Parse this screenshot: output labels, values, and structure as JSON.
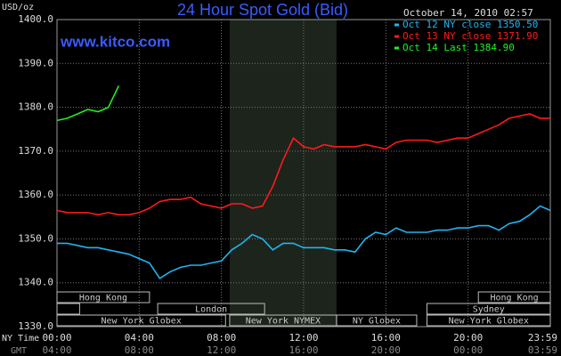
{
  "chart_data": {
    "type": "line",
    "title": "24 Hour Spot Gold (Bid)",
    "watermark": "www.kitco.com",
    "timestamp": "October 14, 2010 02:57",
    "y_unit": "USD/oz",
    "x_axis_labels": [
      "NY Time",
      "GMT"
    ],
    "xlim": [
      0,
      24
    ],
    "xticks": [
      {
        "value": 0,
        "label": "00:00"
      },
      {
        "value": 4,
        "label": "04:00"
      },
      {
        "value": 8,
        "label": "08:00"
      },
      {
        "value": 12,
        "label": "12:00"
      },
      {
        "value": 16,
        "label": "16:00"
      },
      {
        "value": 20,
        "label": "20:00"
      },
      {
        "value": 24,
        "label": "23:59"
      }
    ],
    "gmt_tick_labels": [
      "04:00",
      "08:00",
      "12:00",
      "16:00",
      "20:00",
      "00:00",
      "03:59"
    ],
    "ylim": [
      1330,
      1400
    ],
    "yticks": [
      {
        "value": 1330,
        "label": "1330.0"
      },
      {
        "value": 1340,
        "label": "1340.0"
      },
      {
        "value": 1350,
        "label": "1350.0"
      },
      {
        "value": 1360,
        "label": "1360.0"
      },
      {
        "value": 1370,
        "label": "1370.0"
      },
      {
        "value": 1380,
        "label": "1380.0"
      },
      {
        "value": 1390,
        "label": "1390.0"
      },
      {
        "value": 1400,
        "label": "1400.0"
      }
    ],
    "grid": true,
    "highlight_x": [
      8.4,
      13.6
    ],
    "sessions": [
      {
        "label": "Hong Kong",
        "row": 0,
        "start": 0,
        "end": 4.5
      },
      {
        "label": "Hong Kong",
        "row": 0,
        "start": 20.5,
        "end": 24
      },
      {
        "label": null,
        "row": 1,
        "start": 0,
        "end": 1.1
      },
      {
        "label": "London",
        "row": 1,
        "start": 4.9,
        "end": 10.1
      },
      {
        "label": "Sydney",
        "row": 1,
        "start": 18,
        "end": 24
      },
      {
        "label": "New York Globex",
        "row": 2,
        "start": 0,
        "end": 8.2
      },
      {
        "label": "New York NYMEX",
        "row": 2,
        "start": 8.4,
        "end": 13.6
      },
      {
        "label": "NY Globex",
        "row": 2,
        "start": 13.6,
        "end": 17.5
      },
      {
        "label": "New York Globex",
        "row": 2,
        "start": 18,
        "end": 24
      }
    ],
    "x": [
      0,
      0.5,
      1,
      1.5,
      2,
      2.5,
      3,
      3.5,
      4,
      4.5,
      5,
      5.5,
      6,
      6.5,
      7,
      7.5,
      8,
      8.5,
      9,
      9.5,
      10,
      10.5,
      11,
      11.5,
      12,
      12.5,
      13,
      13.5,
      14,
      14.5,
      15,
      15.5,
      16,
      16.5,
      17,
      17.5,
      18,
      18.5,
      19,
      19.5,
      20,
      20.5,
      21,
      21.5,
      22,
      22.5,
      23,
      23.5,
      24
    ],
    "series": [
      {
        "name": "Oct 12 NY close 1350.50",
        "color": "#22b4f0",
        "values": [
          1349,
          1349,
          1348.5,
          1348,
          1348,
          1347.5,
          1347,
          1346.5,
          1345.5,
          1344.5,
          1341,
          1342.5,
          1343.5,
          1344,
          1344,
          1344.5,
          1345,
          1347.5,
          1349,
          1351,
          1350,
          1347.5,
          1349,
          1349,
          1348,
          1348,
          1348,
          1347.5,
          1347.5,
          1347,
          1350,
          1351.5,
          1351,
          1352.5,
          1351.5,
          1351.5,
          1351.5,
          1352,
          1352,
          1352.5,
          1352.5,
          1353,
          1353,
          1352,
          1353.5,
          1354,
          1355.5,
          1357.5,
          1356.5
        ]
      },
      {
        "name": "Oct 13 NY close 1371.90",
        "color": "#ff1a1a",
        "values": [
          1356.5,
          1356,
          1356,
          1356,
          1355.5,
          1356,
          1355.5,
          1355.5,
          1356,
          1357,
          1358.5,
          1359,
          1359,
          1359.5,
          1358,
          1357.5,
          1357,
          1358,
          1358,
          1357,
          1357.5,
          1362,
          1368,
          1373,
          1371,
          1370.5,
          1371.5,
          1371,
          1371,
          1371,
          1371.5,
          1371,
          1370.5,
          1372,
          1372.5,
          1372.5,
          1372.5,
          1372,
          1372.5,
          1373,
          1373,
          1374,
          1375,
          1376,
          1377.5,
          1378,
          1378.5,
          1377.5,
          1377.5
        ]
      },
      {
        "name": "Oct 14 Last 1384.90",
        "color": "#22ee22",
        "values": [
          1377,
          1377.5,
          1378.5,
          1379.5,
          1379,
          1380,
          1384.9,
          null,
          null,
          null,
          null,
          null,
          null,
          null,
          null,
          null,
          null,
          null,
          null,
          null,
          null,
          null,
          null,
          null,
          null,
          null,
          null,
          null,
          null,
          null,
          null,
          null,
          null,
          null,
          null,
          null,
          null,
          null,
          null,
          null,
          null,
          null,
          null,
          null,
          null,
          null,
          null,
          null,
          null
        ]
      }
    ]
  }
}
